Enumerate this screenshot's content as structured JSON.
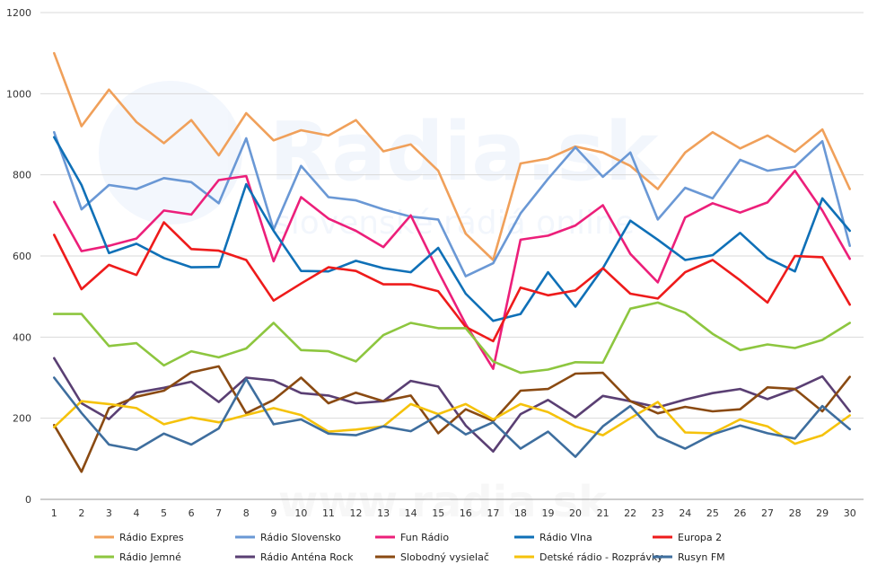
{
  "watermark": {
    "brand": "Radia.sk",
    "tagline": "slovenské rádiá online",
    "site": "www.radia.sk"
  },
  "chart_data": {
    "type": "line",
    "title": "",
    "xlabel": "",
    "ylabel": "",
    "ylim": [
      0,
      1200
    ],
    "yticks": [
      0,
      200,
      400,
      600,
      800,
      1000,
      1200
    ],
    "grid": "horizontal",
    "legend_position": "bottom",
    "x": [
      1,
      2,
      3,
      4,
      5,
      6,
      7,
      8,
      9,
      10,
      11,
      12,
      13,
      14,
      15,
      16,
      17,
      18,
      19,
      20,
      21,
      22,
      23,
      24,
      25,
      26,
      27,
      28,
      29,
      30
    ],
    "series": [
      {
        "name": "Rádio Expres",
        "color": "#F0A05A",
        "values": [
          1100,
          920,
          1010,
          930,
          878,
          935,
          848,
          952,
          885,
          910,
          897,
          935,
          858,
          875,
          810,
          655,
          590,
          828,
          840,
          870,
          855,
          822,
          765,
          855,
          905,
          865,
          897,
          857,
          912,
          765
        ]
      },
      {
        "name": "Rádio Slovensko",
        "color": "#6A98D5",
        "values": [
          905,
          715,
          775,
          765,
          792,
          782,
          730,
          890,
          665,
          822,
          745,
          737,
          715,
          697,
          690,
          550,
          582,
          705,
          790,
          868,
          795,
          855,
          690,
          768,
          742,
          837,
          810,
          820,
          883,
          625
        ]
      },
      {
        "name": "Fun Rádio",
        "color": "#EC1F7A",
        "values": [
          733,
          612,
          625,
          643,
          712,
          702,
          787,
          797,
          587,
          745,
          692,
          662,
          622,
          700,
          562,
          432,
          322,
          640,
          650,
          675,
          725,
          605,
          535,
          695,
          730,
          707,
          732,
          810,
          712,
          593
        ]
      },
      {
        "name": "Rádio Vlna",
        "color": "#0F70B7",
        "values": [
          893,
          775,
          607,
          630,
          595,
          572,
          573,
          777,
          662,
          563,
          562,
          588,
          570,
          560,
          620,
          507,
          440,
          457,
          560,
          475,
          570,
          687,
          640,
          590,
          602,
          657,
          595,
          562,
          742,
          662
        ]
      },
      {
        "name": "Europa 2",
        "color": "#EE1B1B",
        "values": [
          652,
          518,
          578,
          553,
          683,
          617,
          613,
          590,
          490,
          532,
          572,
          563,
          530,
          530,
          513,
          425,
          390,
          522,
          503,
          515,
          570,
          507,
          495,
          560,
          590,
          540,
          485,
          600,
          597,
          480
        ]
      },
      {
        "name": "Rádio Jemné",
        "color": "#8DC63F",
        "values": [
          457,
          457,
          378,
          385,
          330,
          365,
          350,
          372,
          435,
          368,
          365,
          340,
          405,
          435,
          422,
          422,
          340,
          312,
          320,
          338,
          337,
          470,
          485,
          460,
          408,
          368,
          382,
          373,
          393,
          435
        ]
      },
      {
        "name": "Rádio Anténa Rock",
        "color": "#5A3F73",
        "values": [
          348,
          237,
          198,
          263,
          275,
          290,
          240,
          300,
          293,
          262,
          256,
          237,
          242,
          292,
          278,
          182,
          118,
          210,
          245,
          202,
          255,
          242,
          227,
          246,
          262,
          272,
          247,
          272,
          303,
          217
        ]
      },
      {
        "name": "Slobodný vysielač",
        "color": "#8A4A12",
        "values": [
          183,
          68,
          225,
          253,
          268,
          313,
          328,
          212,
          245,
          300,
          237,
          263,
          242,
          256,
          163,
          222,
          193,
          268,
          272,
          310,
          312,
          242,
          212,
          228,
          217,
          222,
          276,
          272,
          217,
          302
        ]
      },
      {
        "name": "Detské rádio - Rozprávky",
        "color": "#F5C20B",
        "values": [
          178,
          242,
          235,
          225,
          185,
          202,
          190,
          208,
          225,
          208,
          167,
          172,
          180,
          235,
          210,
          235,
          197,
          235,
          215,
          180,
          158,
          200,
          240,
          165,
          163,
          197,
          180,
          137,
          158,
          207
        ]
      },
      {
        "name": "Rusyn FM",
        "color": "#3E6E9E",
        "values": [
          300,
          213,
          135,
          122,
          162,
          135,
          175,
          297,
          185,
          197,
          162,
          158,
          180,
          168,
          207,
          160,
          190,
          125,
          167,
          105,
          180,
          230,
          155,
          125,
          160,
          182,
          163,
          150,
          230,
          173
        ]
      }
    ]
  }
}
